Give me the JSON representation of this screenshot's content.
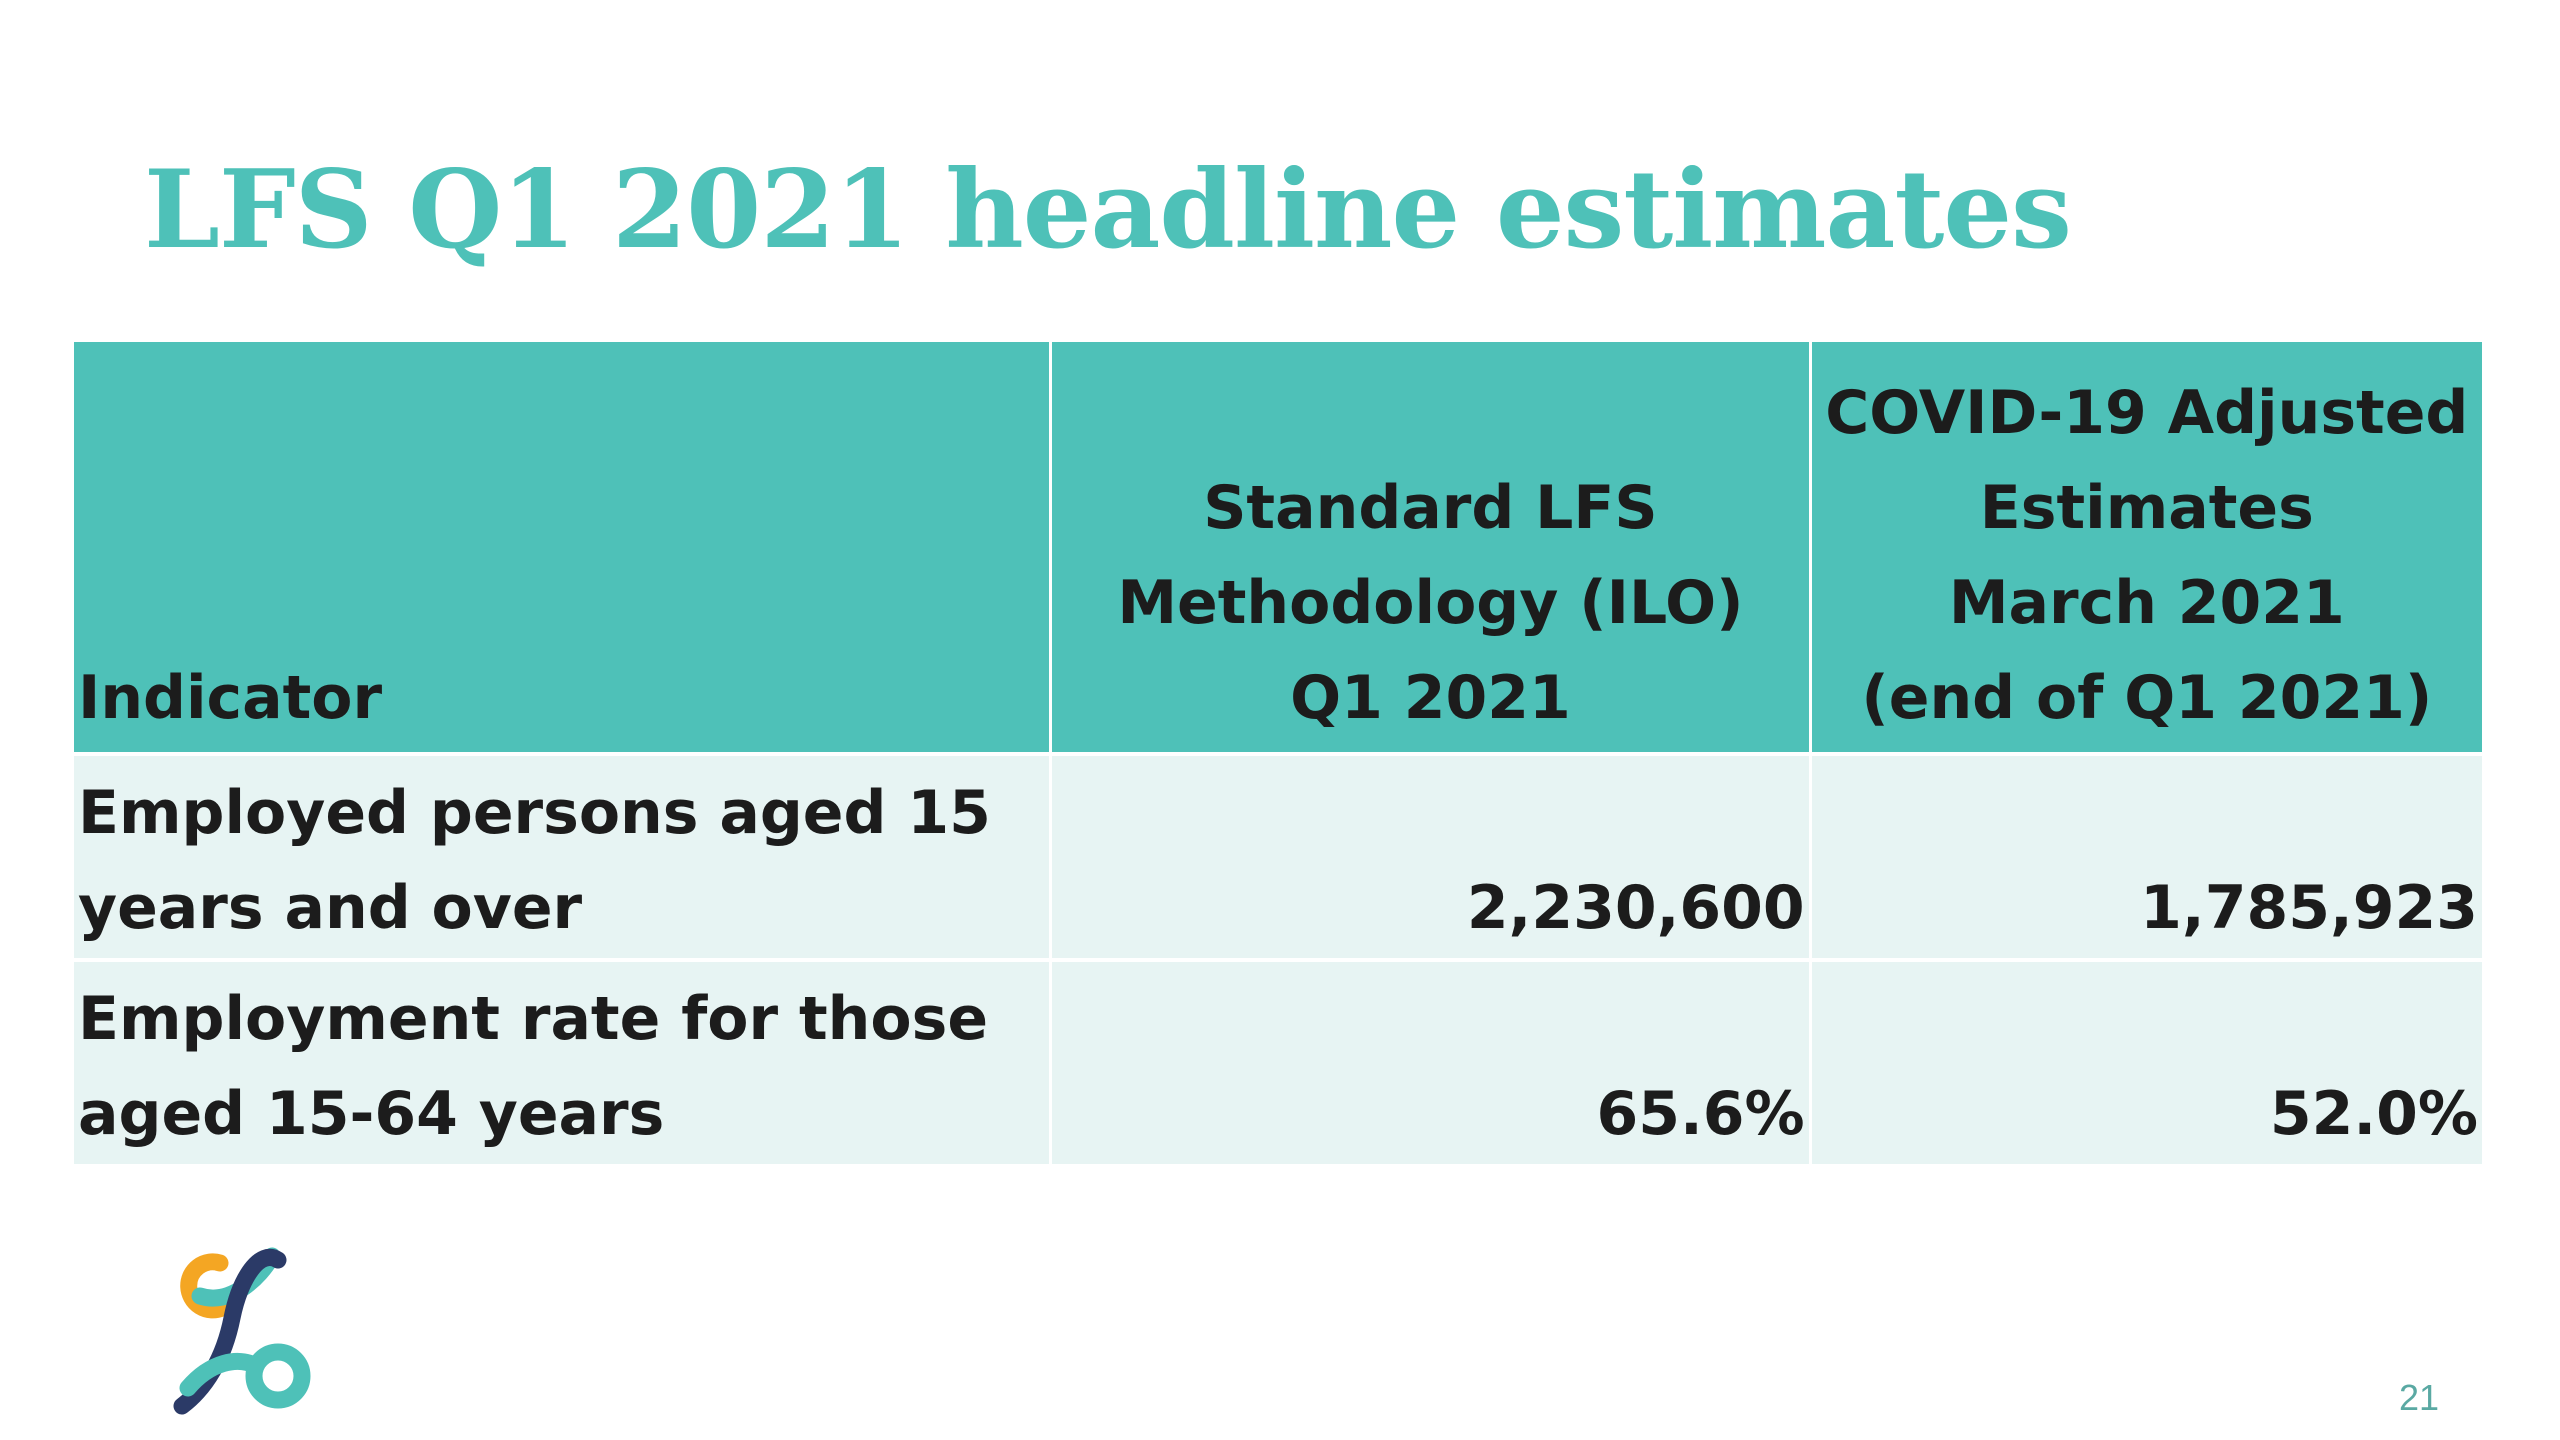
{
  "slide": {
    "title": "LFS Q1 2021 headline estimates",
    "page_number": "21"
  },
  "table": {
    "headers": {
      "indicator": "Indicator",
      "standard": [
        "Standard LFS",
        "Methodology (ILO)",
        "Q1 2021"
      ],
      "covid": [
        "COVID-19 Adjusted",
        "Estimates",
        "March 2021",
        "(end of Q1 2021)"
      ]
    },
    "rows": [
      {
        "indicator": [
          "Employed persons aged 15",
          "years and over"
        ],
        "standard": "2,230,600",
        "covid": "1,785,923"
      },
      {
        "indicator": [
          "Employment rate for those",
          "aged 15-64 years"
        ],
        "standard": "65.6%",
        "covid": "52.0%"
      }
    ]
  },
  "colors": {
    "title": "#4ec1b8",
    "header_background": "#4ec1b8",
    "row_background": "#e7f4f3",
    "logo_orange": "#f4a623",
    "logo_teal": "#4ec1b8",
    "logo_navy": "#2b3a67"
  },
  "icons": {
    "logo": "organization-logo-icon"
  }
}
